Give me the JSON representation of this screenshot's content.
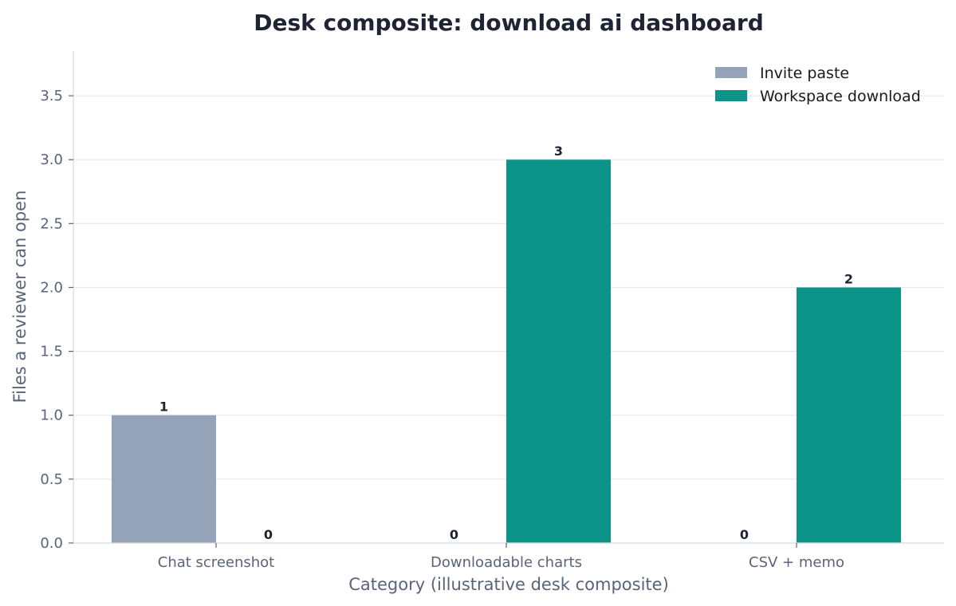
{
  "chart_data": {
    "type": "bar",
    "title": "Desk composite: download ai dashboard",
    "xlabel": "Category (illustrative desk composite)",
    "ylabel": "Files a reviewer can open",
    "categories": [
      "Chat screenshot",
      "Downloadable charts",
      "CSV + memo"
    ],
    "series": [
      {
        "name": "Invite paste",
        "values": [
          1,
          0,
          0
        ],
        "color": "#94a3b8"
      },
      {
        "name": "Workspace download",
        "values": [
          0,
          3,
          2
        ],
        "color": "#0d9488"
      }
    ],
    "ylim": [
      0,
      3.85
    ],
    "yticks": [
      "0.0",
      "0.5",
      "1.0",
      "1.5",
      "2.0",
      "2.5",
      "3.0",
      "3.5"
    ],
    "grid": "horizontal",
    "legend_position": "top-right",
    "data_labels": true
  }
}
